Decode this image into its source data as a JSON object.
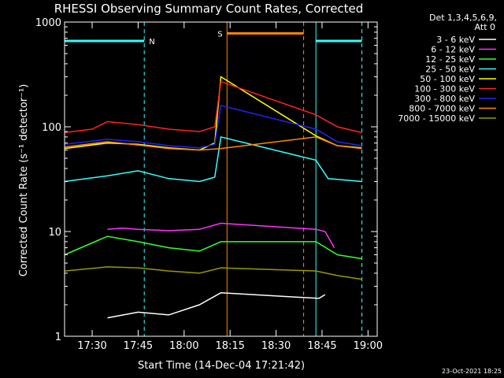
{
  "chart_data": {
    "type": "line",
    "title": "RHESSI Observing Summary Count Rates, Corrected",
    "xlabel": "Start Time (14-Dec-04 17:21:42)",
    "ylabel": "Corrected Count Rate (s⁻¹ detector⁻¹)",
    "yscale": "log",
    "ylim": [
      1,
      1000
    ],
    "xlim": [
      "17:21",
      "19:03"
    ],
    "x_ticks": [
      "17:30",
      "17:45",
      "18:00",
      "18:15",
      "18:30",
      "18:45",
      "19:00"
    ],
    "y_ticks": [
      "1",
      "10",
      "100",
      "1000"
    ],
    "legend_header": [
      "Det 1,3,4,5,6,9,",
      "Att 0"
    ],
    "legend_placement": "right",
    "timestamp": "23-Oct-2021 18:25",
    "series": [
      {
        "name": "3 - 6 keV",
        "color": "#ffffff",
        "x": [
          "17:35",
          "17:45",
          "17:55",
          "18:05",
          "18:12",
          "18:44",
          "18:46"
        ],
        "y": [
          1.5,
          1.7,
          1.6,
          2.0,
          2.6,
          2.3,
          2.5
        ]
      },
      {
        "name": "6 - 12 keV",
        "color": "#ff33ff",
        "x": [
          "17:35",
          "17:40",
          "17:45",
          "17:55",
          "18:05",
          "18:12",
          "18:43",
          "18:46",
          "18:49"
        ],
        "y": [
          10.5,
          10.8,
          10.5,
          10.2,
          10.5,
          12,
          10.5,
          10,
          7
        ]
      },
      {
        "name": "12 - 25 keV",
        "color": "#33ff33",
        "x": [
          "17:21",
          "17:35",
          "17:45",
          "17:55",
          "18:05",
          "18:12",
          "18:43",
          "18:50",
          "18:58"
        ],
        "y": [
          6,
          9,
          8,
          7,
          6.5,
          8,
          8,
          6,
          5.5
        ]
      },
      {
        "name": "25 - 50 keV",
        "color": "#33ffff",
        "x": [
          "17:21",
          "17:35",
          "17:45",
          "17:55",
          "18:05",
          "18:10",
          "18:12",
          "18:43",
          "18:47",
          "18:58"
        ],
        "y": [
          30,
          34,
          38,
          32,
          30,
          33,
          80,
          48,
          32,
          30
        ]
      },
      {
        "name": "50 - 100 keV",
        "color": "#ffff00",
        "x": [
          "17:21",
          "17:35",
          "17:45",
          "17:55",
          "18:05",
          "18:10",
          "18:12",
          "18:43",
          "18:50",
          "18:58"
        ],
        "y": [
          62,
          70,
          68,
          63,
          60,
          70,
          300,
          82,
          66,
          63
        ]
      },
      {
        "name": "100 - 300 keV",
        "color": "#ff2222",
        "x": [
          "17:21",
          "17:30",
          "17:35",
          "17:45",
          "17:55",
          "18:05",
          "18:10",
          "18:12",
          "18:43",
          "18:50",
          "18:58"
        ],
        "y": [
          88,
          95,
          112,
          105,
          95,
          90,
          100,
          270,
          130,
          100,
          88
        ]
      },
      {
        "name": "300 - 800 keV",
        "color": "#2222ff",
        "x": [
          "17:21",
          "17:35",
          "17:45",
          "17:55",
          "18:05",
          "18:10",
          "18:12",
          "18:43",
          "18:50",
          "18:58"
        ],
        "y": [
          68,
          76,
          72,
          66,
          63,
          68,
          160,
          95,
          72,
          66
        ]
      },
      {
        "name": "800 - 7000 keV",
        "color": "#ff8800",
        "x": [
          "17:21",
          "17:35",
          "17:45",
          "17:55",
          "18:05",
          "18:12",
          "18:43",
          "18:50",
          "18:58"
        ],
        "y": [
          64,
          72,
          67,
          62,
          60,
          62,
          80,
          66,
          62
        ]
      },
      {
        "name": "7000 - 15000 keV",
        "color": "#999900",
        "x": [
          "17:21",
          "17:35",
          "17:45",
          "17:55",
          "18:05",
          "18:12",
          "18:43",
          "18:50",
          "18:58"
        ],
        "y": [
          4.2,
          4.6,
          4.5,
          4.2,
          4.0,
          4.5,
          4.2,
          3.8,
          3.5
        ]
      }
    ],
    "annotations": [
      {
        "label": "N",
        "color": "#33ffff",
        "kind": "night",
        "ranges": [
          [
            "17:21",
            "17:47"
          ],
          [
            "18:43",
            "18:58"
          ]
        ],
        "level": 660
      },
      {
        "label": "S",
        "color": "#ff8800",
        "kind": "saa",
        "ranges": [
          [
            "18:14",
            "18:39"
          ]
        ],
        "level": 780
      }
    ]
  }
}
